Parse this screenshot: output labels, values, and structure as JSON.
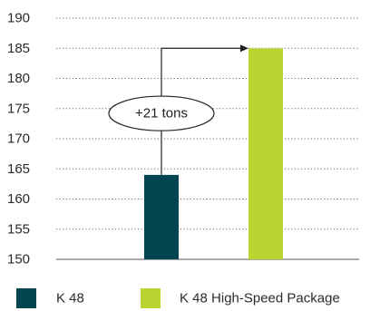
{
  "chart_data": {
    "type": "bar",
    "title": "",
    "xlabel": "",
    "ylabel": "",
    "ylim": [
      150,
      190
    ],
    "yticks": [
      150,
      155,
      160,
      165,
      170,
      175,
      180,
      185,
      190
    ],
    "grid": true,
    "grid_style": "dotted",
    "legend_position": "bottom",
    "categories": [
      "K 48",
      "K 48 High-Speed Package"
    ],
    "values": [
      164,
      185
    ],
    "colors": [
      "#00454f",
      "#b9d531"
    ],
    "annotation": {
      "text": "+21 tons",
      "from_index": 0,
      "to_index": 1
    }
  }
}
